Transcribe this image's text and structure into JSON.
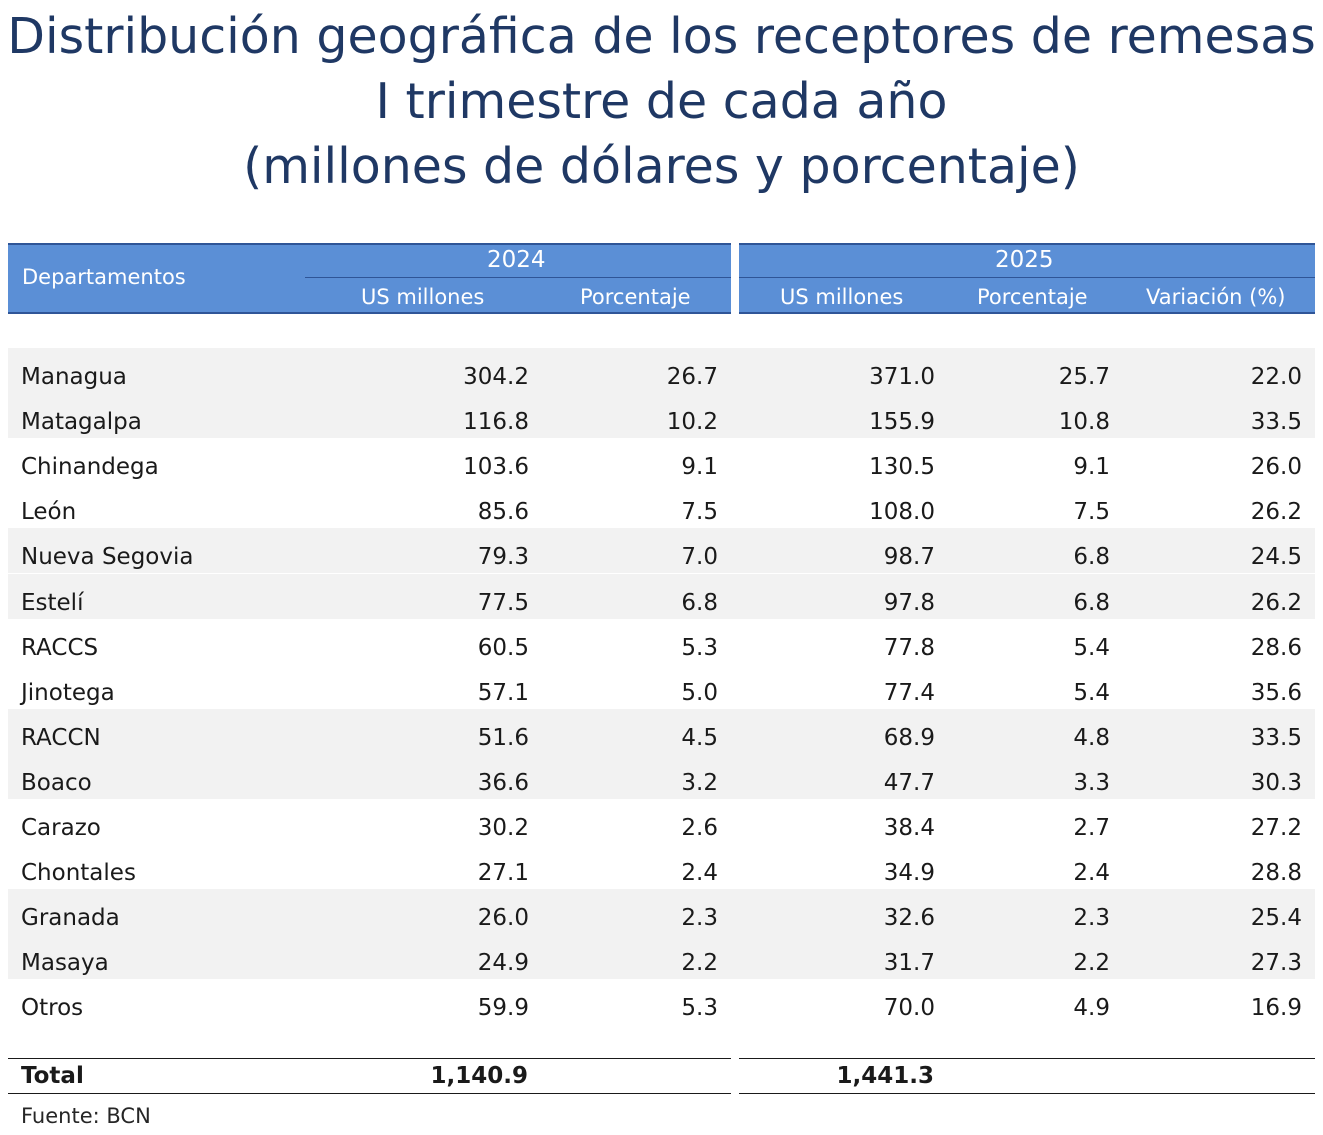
{
  "title": {
    "line1": "Distribución geográfica de los receptores de remesas",
    "line2": "I trimestre de cada año",
    "line3": "(millones de dólares y porcentaje)"
  },
  "header": {
    "departamentos": "Departamentos",
    "year_2024": "2024",
    "year_2025": "2025",
    "us_millones": "US millones",
    "porcentaje": "Porcentaje",
    "variacion": "Variación (%)"
  },
  "colors": {
    "header_fill": "#5b8fd6",
    "header_rule": "#2f5597",
    "title_color": "#1f3864",
    "band_fill": "#f2f2f2"
  },
  "chart_data": {
    "type": "table",
    "columns": [
      "Departamentos",
      "2024 US millones",
      "2024 Porcentaje",
      "2025 US millones",
      "2025 Porcentaje",
      "Variación (%)"
    ],
    "rows": [
      [
        "Managua",
        "304.2",
        "26.7",
        "371.0",
        "25.7",
        "22.0"
      ],
      [
        "Matagalpa",
        "116.8",
        "10.2",
        "155.9",
        "10.8",
        "33.5"
      ],
      [
        "Chinandega",
        "103.6",
        "9.1",
        "130.5",
        "9.1",
        "26.0"
      ],
      [
        "León",
        "85.6",
        "7.5",
        "108.0",
        "7.5",
        "26.2"
      ],
      [
        "Nueva Segovia",
        "79.3",
        "7.0",
        "98.7",
        "6.8",
        "24.5"
      ],
      [
        "Estelí",
        "77.5",
        "6.8",
        "97.8",
        "6.8",
        "26.2"
      ],
      [
        "RACCS",
        "60.5",
        "5.3",
        "77.8",
        "5.4",
        "28.6"
      ],
      [
        "Jinotega",
        "57.1",
        "5.0",
        "77.4",
        "5.4",
        "35.6"
      ],
      [
        "RACCN",
        "51.6",
        "4.5",
        "68.9",
        "4.8",
        "33.5"
      ],
      [
        "Boaco",
        "36.6",
        "3.2",
        "47.7",
        "3.3",
        "30.3"
      ],
      [
        "Carazo",
        "30.2",
        "2.6",
        "38.4",
        "2.7",
        "27.2"
      ],
      [
        "Chontales",
        "27.1",
        "2.4",
        "34.9",
        "2.4",
        "28.8"
      ],
      [
        "Granada",
        "26.0",
        "2.3",
        "32.6",
        "2.3",
        "25.4"
      ],
      [
        "Masaya",
        "24.9",
        "2.2",
        "31.7",
        "2.2",
        "27.3"
      ],
      [
        "Otros",
        "59.9",
        "5.3",
        "70.0",
        "4.9",
        "16.9"
      ]
    ],
    "total": {
      "label": "Total",
      "v2024": "1,140.9",
      "v2025": "1,441.3"
    }
  },
  "source": "Fuente: BCN"
}
